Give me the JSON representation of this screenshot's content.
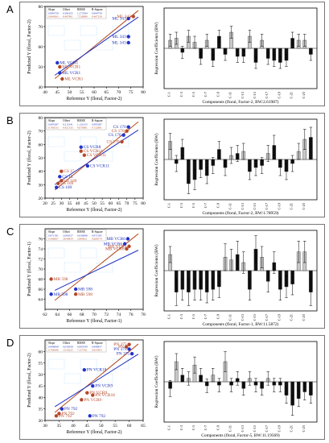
{
  "panels": [
    {
      "label": "A",
      "scatter": {
        "xlabel": "Reference Y (floral, Factor-2)",
        "ylabel": "Predicted Y (floral, Factor-2)",
        "xlim": [
          40,
          80
        ],
        "ylim": [
          40,
          80
        ],
        "xticks": [
          40,
          45,
          50,
          55,
          60,
          65,
          70,
          75,
          80
        ],
        "yticks": [
          40,
          50,
          60,
          70,
          80
        ],
        "stats_header": [
          "Slope",
          "Offset",
          "RMSE",
          "R-Square"
        ],
        "stats_rows": [
          [
            "0.994759",
            "0.381655",
            "1.273564",
            "0.994759"
          ],
          [
            "0.849363",
            "8.487801",
            "7.528080",
            "0.467239"
          ]
        ],
        "points": [
          {
            "x": 74,
            "y": 74,
            "label": "ML 343",
            "c": "b"
          },
          {
            "x": 76,
            "y": 75,
            "label": "ML 343",
            "c": "r"
          },
          {
            "x": 74,
            "y": 65,
            "label": "ML 343",
            "c": "b"
          },
          {
            "x": 74,
            "y": 62,
            "label": "ML 343",
            "c": "b"
          },
          {
            "x": 45,
            "y": 52,
            "label": "ML VCR1",
            "c": "b"
          },
          {
            "x": 46,
            "y": 50,
            "label": "ML VCR1",
            "c": "r"
          },
          {
            "x": 46,
            "y": 47,
            "label": "ML VCR1",
            "c": "b"
          },
          {
            "x": 47,
            "y": 44,
            "label": "ML VCR1",
            "c": "r"
          }
        ]
      },
      "bars": {
        "xlabel": "Components (floral, Factor-2, BW:2.61987)",
        "ylabel": "Regression Coefficients (BW)",
        "categories": [
          "C-1",
          "C-2",
          "C-3",
          "C-4",
          "C-5",
          "C-6",
          "C-7",
          "C-8",
          "C-9",
          "C-10",
          "C-11",
          "C-12",
          "C-13",
          "C-14",
          "C-15",
          "C-16",
          "C-17",
          "C-18",
          "C-19",
          "C-20",
          "C-21",
          "C-22",
          "C-23",
          "C-24"
        ],
        "xtick_labels": [
          "C-1",
          "C-3",
          "C-5",
          "C-7",
          "C-9",
          "C-11",
          "C-13",
          "C-15",
          "C-17",
          "C-19",
          "C-21",
          "C-23"
        ],
        "values": [
          0.04,
          0.05,
          -0.02,
          0.06,
          0.03,
          -0.05,
          0.04,
          -0.06,
          0.06,
          -0.03,
          0.08,
          -0.04,
          -0.04,
          0.06,
          -0.07,
          0.04,
          -0.05,
          -0.06,
          -0.07,
          -0.06,
          0.05,
          0.04,
          0.04,
          -0.03
        ],
        "errors": [
          0.03,
          0.03,
          0.03,
          0.03,
          0.03,
          0.03,
          0.03,
          0.03,
          0.03,
          0.03,
          0.03,
          0.03,
          0.03,
          0.03,
          0.03,
          0.03,
          0.03,
          0.03,
          0.03,
          0.03,
          0.03,
          0.03,
          0.03,
          0.03
        ],
        "ylim": [
          -0.2,
          0.2
        ]
      }
    },
    {
      "label": "B",
      "scatter": {
        "xlabel": "Reference Y (floral, Factor-2)",
        "ylabel": "Predicted Y (floral, Factor-2)",
        "xlim": [
          20,
          80
        ],
        "ylim": [
          20,
          80
        ],
        "xticks": [
          20,
          25,
          30,
          35,
          40,
          45,
          50,
          55,
          60,
          65,
          70,
          75,
          80
        ],
        "yticks": [
          20,
          30,
          40,
          50,
          60,
          70,
          80
        ],
        "stats_header": [
          "Slope",
          "Offset",
          "RMSE",
          "R-Square"
        ],
        "stats_rows": [
          [
            "0.995287",
            "0.215241",
            "1.121615",
            "0.995387"
          ],
          [
            "0.796333",
            "9.421333",
            "9.076961",
            "0.722891"
          ]
        ],
        "points": [
          {
            "x": 71,
            "y": 73,
            "label": "CS 170",
            "c": "b"
          },
          {
            "x": 70,
            "y": 70,
            "label": "CS 170",
            "c": "r"
          },
          {
            "x": 68,
            "y": 67,
            "label": "CS 170",
            "c": "b"
          },
          {
            "x": 67,
            "y": 62,
            "label": "CS 170",
            "c": "r"
          },
          {
            "x": 42,
            "y": 58,
            "label": "CS VCR8",
            "c": "b"
          },
          {
            "x": 42,
            "y": 55,
            "label": "CS VCR11",
            "c": "r"
          },
          {
            "x": 44,
            "y": 52,
            "label": "CS VCR11",
            "c": "r"
          },
          {
            "x": 46,
            "y": 44,
            "label": "CS VCR11",
            "c": "b"
          },
          {
            "x": 30,
            "y": 40,
            "label": "CS 15",
            "c": "r"
          },
          {
            "x": 29,
            "y": 36,
            "label": "CS 15",
            "c": "b"
          },
          {
            "x": 30,
            "y": 33,
            "label": "CS 169",
            "c": "r"
          },
          {
            "x": 28,
            "y": 31,
            "label": "CS 169",
            "c": "r"
          },
          {
            "x": 27,
            "y": 28,
            "label": "CS 169",
            "c": "b"
          }
        ]
      },
      "bars": {
        "xlabel": "Components (floral, Factor-2, BW:1.78959)",
        "ylabel": "Regression Coefficients (BW)",
        "categories": [
          "C-1",
          "C-2",
          "C-3",
          "C-4",
          "C-5",
          "C-6",
          "C-7",
          "C-8",
          "C-9",
          "C-10",
          "C-11",
          "C-12",
          "C-13",
          "C-14",
          "C-15",
          "C-16",
          "C-17",
          "C-18",
          "C-19",
          "C-20",
          "C-21",
          "C-22",
          "C-23",
          "C-24"
        ],
        "xtick_labels": [
          "C-1",
          "C-3",
          "C-5",
          "C-7",
          "C-9",
          "C-11",
          "C-13",
          "C-15",
          "C-17",
          "C-19",
          "C-21",
          "C-23"
        ],
        "values": [
          0.09,
          -0.02,
          0.06,
          -0.12,
          -0.1,
          -0.05,
          -0.08,
          -0.03,
          0.05,
          -0.04,
          0.02,
          0.03,
          0.04,
          -0.06,
          -0.04,
          -0.03,
          0.03,
          0.07,
          -0.04,
          -0.06,
          -0.02,
          0.04,
          0.1,
          0.11
        ],
        "errors": [
          0.04,
          0.04,
          0.04,
          0.05,
          0.05,
          0.04,
          0.04,
          0.04,
          0.04,
          0.04,
          0.04,
          0.04,
          0.04,
          0.04,
          0.04,
          0.04,
          0.04,
          0.05,
          0.04,
          0.04,
          0.04,
          0.04,
          0.05,
          0.05
        ],
        "ylim": [
          -0.2,
          0.2
        ]
      }
    },
    {
      "label": "C",
      "scatter": {
        "xlabel": "Reference Y (floral, Factor-1)",
        "ylabel": "Predicted Y (floral, Factor-1)",
        "xlim": [
          62,
          78
        ],
        "ylim": [
          62,
          78
        ],
        "xticks": [
          62,
          64,
          66,
          68,
          70,
          72,
          74,
          76,
          78
        ],
        "yticks": [
          64,
          66,
          68,
          70,
          72,
          74,
          76
        ],
        "stats_header": [
          "Slope",
          "Offset",
          "RMSE",
          "R-Square"
        ],
        "stats_rows": [
          [
            "0.971391",
            "2.000527",
            "0.936908",
            "0.971385"
          ],
          [
            "0.586007",
            "28.49834",
            "2.809811",
            "0.669574"
          ]
        ],
        "points": [
          {
            "x": 75.5,
            "y": 76,
            "label": "MB VCR6",
            "c": "b"
          },
          {
            "x": 75,
            "y": 75,
            "label": "MB VCR6",
            "c": "b"
          },
          {
            "x": 75.7,
            "y": 74.5,
            "label": "MB VCR6",
            "c": "r"
          },
          {
            "x": 75.3,
            "y": 74,
            "label": "MB VCR6",
            "c": "r"
          },
          {
            "x": 63,
            "y": 68,
            "label": "MB 598",
            "c": "r"
          },
          {
            "x": 67,
            "y": 66,
            "label": "MB 598",
            "c": "b"
          },
          {
            "x": 63,
            "y": 65,
            "label": "MB 598",
            "c": "b"
          },
          {
            "x": 67,
            "y": 65,
            "label": "MB 598",
            "c": "r"
          }
        ]
      },
      "bars": {
        "xlabel": "Components (floral, Factor-1, BW:11.5872)",
        "ylabel": "Regression Coefficients (BW)",
        "categories": [
          "C-1",
          "C-2",
          "C-3",
          "C-4",
          "C-5",
          "C-6",
          "C-7",
          "C-8",
          "C-9",
          "C-10",
          "C-11",
          "C-12",
          "C-13",
          "C-14",
          "C-15",
          "C-16",
          "C-17",
          "C-18",
          "C-19",
          "C-20",
          "C-21",
          "C-22",
          "C-23",
          "C-24"
        ],
        "xtick_labels": [
          "C-1",
          "C-3",
          "C-5",
          "C-7",
          "C-9",
          "C-11",
          "C-13",
          "C-15",
          "C-17",
          "C-19",
          "C-21",
          "C-23"
        ],
        "values": [
          0.6,
          -0.8,
          -0.7,
          -0.8,
          -0.7,
          -0.7,
          -0.8,
          -0.7,
          -0.6,
          0.5,
          0.4,
          0.6,
          0.3,
          -0.7,
          0.8,
          0.5,
          -0.4,
          0.3,
          -0.7,
          -0.6,
          -0.5,
          0.7,
          0.7,
          -0.8
        ],
        "errors": [
          0.3,
          0.5,
          0.4,
          0.5,
          0.4,
          0.4,
          0.4,
          0.4,
          0.4,
          0.5,
          0.4,
          0.5,
          0.4,
          0.4,
          0.5,
          0.4,
          0.4,
          0.4,
          0.4,
          0.4,
          0.4,
          0.4,
          0.4,
          0.5
        ],
        "ylim": [
          -1.5,
          1.5
        ]
      }
    },
    {
      "label": "D",
      "scatter": {
        "xlabel": "Reference Y (floral, Factor-2)",
        "ylabel": "Predicted Y (floral, Factor-2)",
        "xlim": [
          30,
          65
        ],
        "ylim": [
          30,
          65
        ],
        "xticks": [
          30,
          35,
          40,
          45,
          50,
          55,
          60,
          65
        ],
        "yticks": [
          30,
          35,
          40,
          45,
          50,
          55,
          60
        ],
        "stats_header": [
          "Slope",
          "Offset",
          "RMSE",
          "R-Square"
        ],
        "stats_rows": [
          [
            "0.998838",
            "0.050058",
            "0.993549",
            "0.998837"
          ],
          [
            "0.766646",
            "10.30225",
            "7.357561",
            "0.653403"
          ]
        ],
        "points": [
          {
            "x": 60,
            "y": 63,
            "label": "PN 375",
            "c": "r"
          },
          {
            "x": 60,
            "y": 61,
            "label": "PN 375",
            "c": "b"
          },
          {
            "x": 61,
            "y": 59,
            "label": "PN 375",
            "c": "b"
          },
          {
            "x": 59,
            "y": 62,
            "label": "PN",
            "c": "r"
          },
          {
            "x": 44,
            "y": 52,
            "label": "PN VCR18",
            "c": "b"
          },
          {
            "x": 47,
            "y": 45,
            "label": "PN VCR9",
            "c": "b"
          },
          {
            "x": 45,
            "y": 42,
            "label": "PN VCR9",
            "c": "r"
          },
          {
            "x": 47,
            "y": 41,
            "label": "PN VCR18",
            "c": "r"
          },
          {
            "x": 43,
            "y": 39,
            "label": "PN VCR9",
            "c": "r"
          },
          {
            "x": 36,
            "y": 35,
            "label": "PN 792",
            "c": "b"
          },
          {
            "x": 35,
            "y": 33,
            "label": "PN 792",
            "c": "r"
          },
          {
            "x": 34,
            "y": 32,
            "label": "PN 792",
            "c": "r"
          },
          {
            "x": 46,
            "y": 32,
            "label": "PN 792",
            "c": "b"
          }
        ]
      },
      "bars": {
        "xlabel": "Components (floral, Factor-5, BW:11.19569)",
        "ylabel": "Regression Coefficients (BW)",
        "categories": [
          "C-1",
          "C-2",
          "C-3",
          "C-4",
          "C-5",
          "C-6",
          "C-7",
          "C-8",
          "C-9",
          "C-10",
          "C-11",
          "C-12",
          "C-13",
          "C-14",
          "C-15",
          "C-16",
          "C-17",
          "C-18",
          "C-19",
          "C-20",
          "C-21",
          "C-22",
          "C-23",
          "C-24"
        ],
        "xtick_labels": [
          "C-1",
          "C-3",
          "C-5",
          "C-7",
          "C-9",
          "C-11",
          "C-13",
          "C-15",
          "C-17",
          "C-19",
          "C-21",
          "C-23"
        ],
        "values": [
          -0.1,
          0.3,
          0.1,
          0.05,
          0.25,
          0.1,
          -0.06,
          0.1,
          -0.05,
          0.3,
          -0.05,
          0.05,
          -0.1,
          0.05,
          -0.05,
          -0.1,
          0.05,
          -0.05,
          -0.05,
          -0.2,
          -0.35,
          -0.25,
          -0.15,
          -0.2
        ],
        "errors": [
          0.12,
          0.12,
          0.1,
          0.1,
          0.12,
          0.1,
          0.1,
          0.1,
          0.1,
          0.15,
          0.1,
          0.1,
          0.1,
          0.1,
          0.1,
          0.1,
          0.1,
          0.1,
          0.1,
          0.12,
          0.15,
          0.12,
          0.12,
          0.12
        ],
        "ylim": [
          -0.6,
          0.6
        ]
      }
    }
  ],
  "chart_data": [
    {
      "type": "scatter",
      "panel": "A",
      "xlabel": "Reference Y (floral, Factor-2)",
      "ylabel": "Predicted Y (floral, Factor-2)",
      "xlim": [
        40,
        80
      ],
      "ylim": [
        40,
        80
      ]
    },
    {
      "type": "bar",
      "panel": "A",
      "xlabel": "Components (floral, Factor-2, BW:2.61987)",
      "ylabel": "Regression Coefficients (BW)"
    },
    {
      "type": "scatter",
      "panel": "B",
      "xlabel": "Reference Y (floral, Factor-2)",
      "ylabel": "Predicted Y (floral, Factor-2)",
      "xlim": [
        20,
        80
      ],
      "ylim": [
        20,
        80
      ]
    },
    {
      "type": "bar",
      "panel": "B",
      "xlabel": "Components (floral, Factor-2, BW:1.78959)",
      "ylabel": "Regression Coefficients (BW)"
    },
    {
      "type": "scatter",
      "panel": "C",
      "xlabel": "Reference Y (floral, Factor-1)",
      "ylabel": "Predicted Y (floral, Factor-1)",
      "xlim": [
        62,
        78
      ],
      "ylim": [
        62,
        78
      ]
    },
    {
      "type": "bar",
      "panel": "C",
      "xlabel": "Components (floral, Factor-1, BW:11.5872)",
      "ylabel": "Regression Coefficients (BW)"
    },
    {
      "type": "scatter",
      "panel": "D",
      "xlabel": "Reference Y (floral, Factor-2)",
      "ylabel": "Predicted Y (floral, Factor-2)",
      "xlim": [
        30,
        65
      ],
      "ylim": [
        30,
        65
      ]
    },
    {
      "type": "bar",
      "panel": "D",
      "xlabel": "Components (floral, Factor-5, BW:11.19569)",
      "ylabel": "Regression Coefficients (BW)"
    }
  ],
  "colors": {
    "blue": "#2233cc",
    "red": "#b5482a",
    "line_blue": "#1f2fbf",
    "line_red": "#b54a1f",
    "bar_gray": "#c8c8c8",
    "bar_black": "#111111",
    "label_blue": "#2233bb",
    "label_red": "#b5482a",
    "watermark": "#a8d8ff"
  }
}
